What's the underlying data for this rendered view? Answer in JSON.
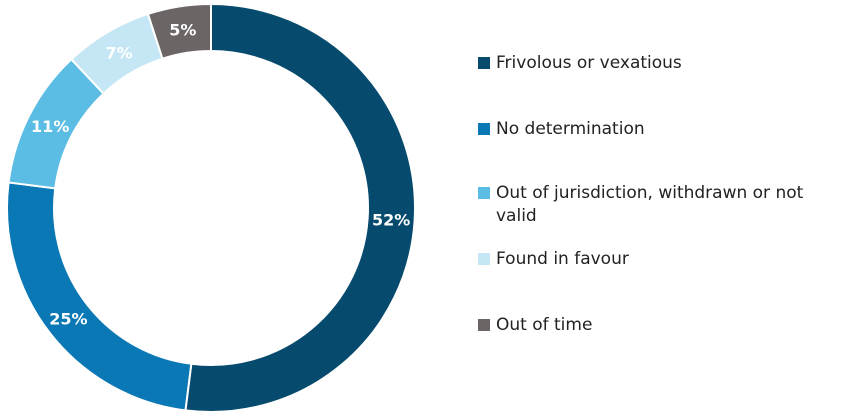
{
  "chart_data": {
    "type": "pie",
    "donut": true,
    "title": "",
    "legend_position": "right",
    "categories": [
      "Frivolous or vexatious",
      "No determination",
      "Out of jurisdiction, withdrawn or not valid",
      "Found in favour",
      "Out of time"
    ],
    "values": [
      52,
      25,
      11,
      7,
      5
    ],
    "value_labels": [
      "52%",
      "25%",
      "11%",
      "7%",
      "5%"
    ],
    "unit": "%",
    "colors": [
      "#064a6e",
      "#0a78b4",
      "#5bbde4",
      "#c4e6f5",
      "#6b6566"
    ],
    "label_colors": [
      "#ffffff",
      "#ffffff",
      "#ffffff",
      "#ffffff",
      "#ffffff"
    ]
  }
}
